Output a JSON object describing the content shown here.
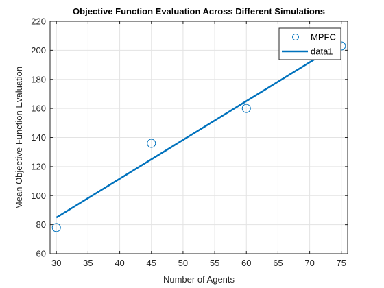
{
  "chart_data": {
    "type": "scatter",
    "title": "Objective Function Evaluation Across Different Simulations",
    "xlabel": "Number of Agents",
    "ylabel": "Mean Objective Function Evaluation",
    "xlim": [
      29,
      76
    ],
    "ylim": [
      60,
      220
    ],
    "xticks": [
      30,
      35,
      40,
      45,
      50,
      55,
      60,
      65,
      70,
      75
    ],
    "yticks": [
      60,
      80,
      100,
      120,
      140,
      160,
      180,
      200,
      220
    ],
    "grid": true,
    "legend_position": "top-right",
    "series": [
      {
        "name": "MPFC",
        "kind": "scatter",
        "marker": "circle",
        "color": "#0072BD",
        "x": [
          30,
          45,
          60,
          75
        ],
        "y": [
          78,
          136,
          160,
          203
        ]
      },
      {
        "name": "data1",
        "kind": "line",
        "color": "#0072BD",
        "x": [
          30,
          75
        ],
        "y": [
          84.9,
          205.1
        ]
      }
    ]
  }
}
